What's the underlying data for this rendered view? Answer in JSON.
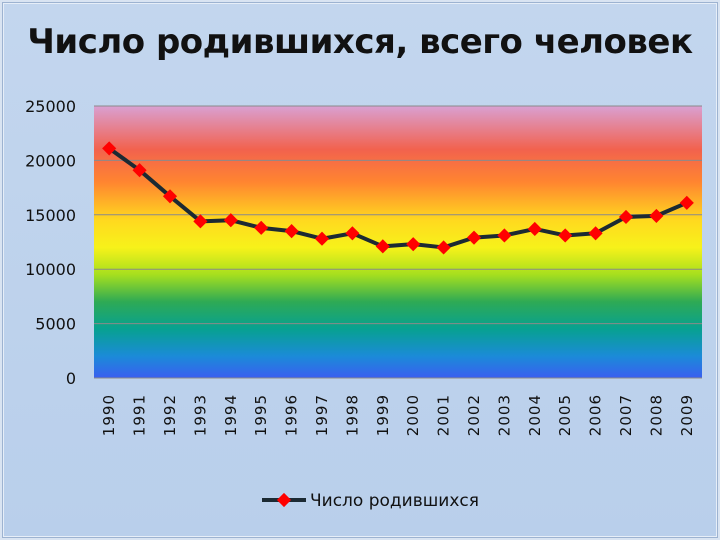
{
  "chart_data": {
    "type": "line",
    "title": "Число родившихся, всего человек",
    "xlabel": "",
    "ylabel": "",
    "categories": [
      "1990",
      "1991",
      "1992",
      "1993",
      "1994",
      "1995",
      "1996",
      "1997",
      "1998",
      "1999",
      "2000",
      "2001",
      "2002",
      "2003",
      "2004",
      "2005",
      "2006",
      "2007",
      "2008",
      "2009"
    ],
    "series": [
      {
        "name": "Число родившихся",
        "values": [
          21100,
          19100,
          16700,
          14400,
          14500,
          13800,
          13500,
          12800,
          13300,
          12100,
          12300,
          12000,
          12900,
          13100,
          13700,
          13100,
          13300,
          14800,
          14900,
          16100
        ]
      }
    ],
    "ylim": [
      0,
      25000
    ],
    "yticks": [
      "0",
      "5000",
      "10000",
      "15000",
      "20000",
      "25000"
    ],
    "grid": true,
    "legend_position": "bottom",
    "line_color": "#1c2a33",
    "marker_color": "#ff0000",
    "background_gradient": [
      "#d79ad0",
      "#f45f4a",
      "#ff8a2a",
      "#ffe81a",
      "#c8ea18",
      "#3bb34a",
      "#0aa58a",
      "#1f8fd6",
      "#3a62e8"
    ]
  }
}
